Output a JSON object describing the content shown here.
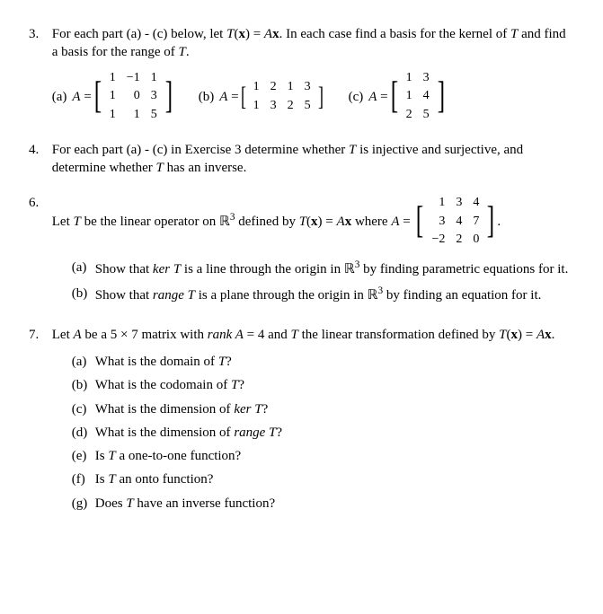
{
  "background_color": "#ffffff",
  "text_color": "#000000",
  "font_family": "Times New Roman, serif",
  "base_fontsize": 15,
  "p3": {
    "num": "3.",
    "text_a": "For each part (a) - (c) below, let ",
    "tx": "T",
    "paren_x": "(",
    "xv": "x",
    "paren_c": ") = ",
    "ax": "A",
    "xv2": "x",
    "text_b": ". In each case find a basis for the kernel of ",
    "t2": "T",
    "text_c": " and find a basis for the range of ",
    "t3": "T",
    "text_d": ".",
    "parts": {
      "a": {
        "label": "(a)",
        "prefix": "A = ",
        "matrix": [
          [
            "1",
            "−1",
            "1"
          ],
          [
            "1",
            "0",
            "3"
          ],
          [
            "1",
            "1",
            "5"
          ]
        ]
      },
      "b": {
        "label": "(b)",
        "prefix": "A = ",
        "matrix": [
          [
            "1",
            "2",
            "1",
            "3"
          ],
          [
            "1",
            "3",
            "2",
            "5"
          ]
        ]
      },
      "c": {
        "label": "(c)",
        "prefix": "A = ",
        "matrix": [
          [
            "1",
            "3"
          ],
          [
            "1",
            "4"
          ],
          [
            "2",
            "5"
          ]
        ]
      }
    }
  },
  "p4": {
    "num": "4.",
    "text_a": "For each part (a) - (c) in Exercise 3 determine whether ",
    "t1": "T",
    "text_b": " is injective and surjective, and determine whether ",
    "t2": "T",
    "text_c": " has an inverse."
  },
  "p6": {
    "num": "6.",
    "text_a": "Let ",
    "t1": "T",
    "text_b": " be the linear operator on ",
    "rr": "ℝ",
    "rexp": "3",
    "text_c": " defined by ",
    "tx": "T",
    "po": "(",
    "xv": "x",
    "pc": ") = ",
    "ax": "A",
    "xv2": "x",
    "text_d": " where ",
    "ax2": "A",
    "eq": " = ",
    "matrix": [
      [
        "1",
        "3",
        "4"
      ],
      [
        "3",
        "4",
        "7"
      ],
      [
        "−2",
        "2",
        "0"
      ]
    ],
    "period": ".",
    "sub": {
      "a": {
        "label": "(a)",
        "t1": "Show that ",
        "kerT": "ker T",
        "t2": " is a line through the origin in ",
        "rr": "ℝ",
        "rexp": "3",
        "t3": " by finding parametric equations for it."
      },
      "b": {
        "label": "(b)",
        "t1": "Show that ",
        "rangeT": "range T",
        "t2": " is a plane through the origin in ",
        "rr": "ℝ",
        "rexp": "3",
        "t3": " by finding an equation for it."
      }
    }
  },
  "p7": {
    "num": "7.",
    "text_a": "Let ",
    "av": "A",
    "text_b": " be a 5 × 7 matrix with ",
    "rank": "rank A",
    "text_c": " = 4 and ",
    "tv": "T",
    "text_d": " the linear transformation defined by ",
    "tx": "T",
    "po": "(",
    "xv": "x",
    "pc": ") = ",
    "ax": "A",
    "xv2": "x",
    "period": ".",
    "sub": {
      "a": {
        "label": "(a)",
        "q1": "What is the domain of ",
        "t": "T",
        "q2": "?"
      },
      "b": {
        "label": "(b)",
        "q1": "What is the codomain of ",
        "t": "T",
        "q2": "?"
      },
      "c": {
        "label": "(c)",
        "q1": "What is the dimension of ",
        "kt": "ker T",
        "q2": "?"
      },
      "d": {
        "label": "(d)",
        "q1": "What is the dimension of ",
        "rt": "range T",
        "q2": "?"
      },
      "e": {
        "label": "(e)",
        "q1": "Is ",
        "t": "T",
        "q2": " a one-to-one function?"
      },
      "f": {
        "label": "(f)",
        "q1": "Is ",
        "t": "T",
        "q2": " an onto function?"
      },
      "g": {
        "label": "(g)",
        "q1": "Does ",
        "t": "T",
        "q2": " have an inverse function?"
      }
    }
  }
}
